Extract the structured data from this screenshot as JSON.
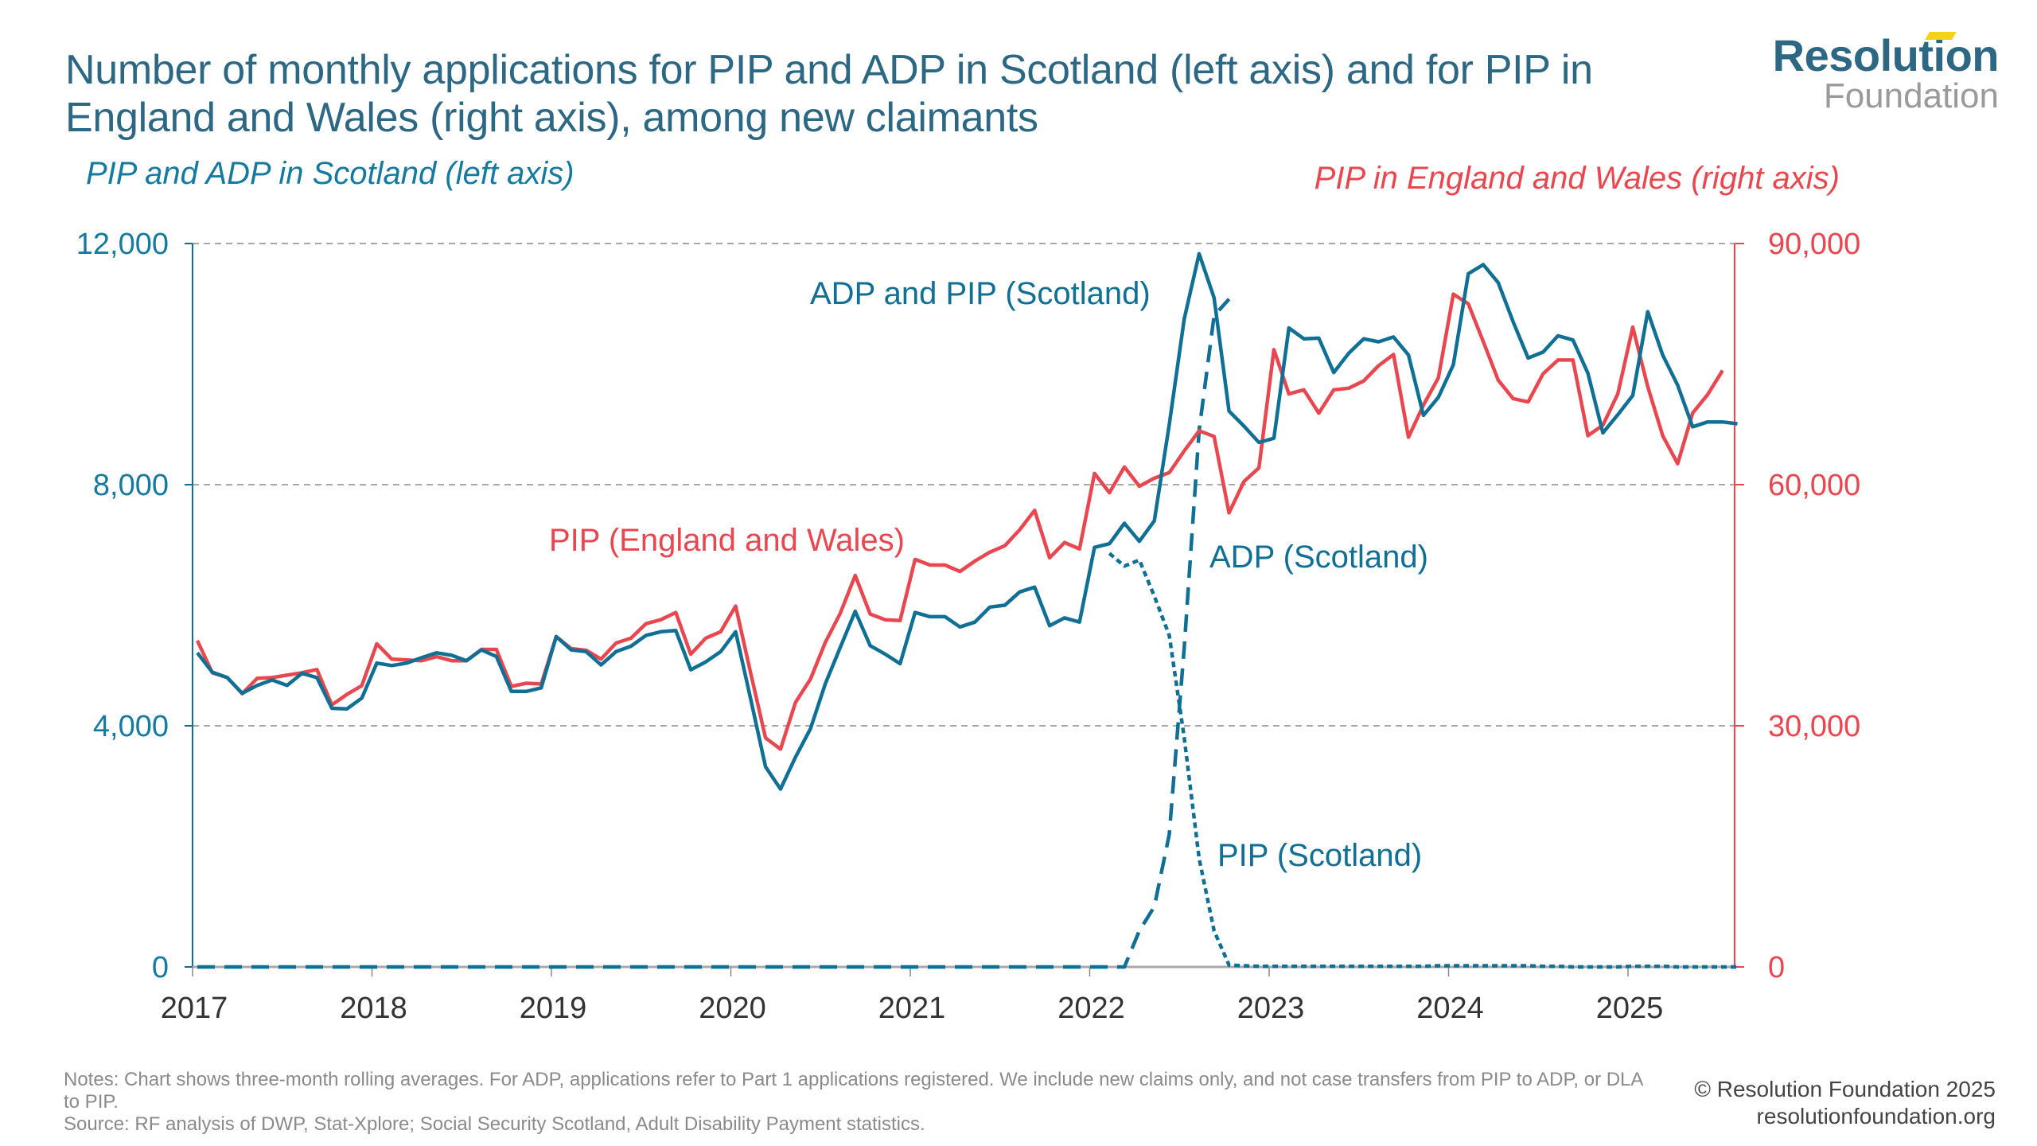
{
  "header": {
    "title": "Number of monthly applications for PIP and ADP in Scotland (left axis) and for PIP in England and Wales (right axis), among new claimants",
    "logo_top": "Resolution",
    "logo_bottom": "Foundation"
  },
  "colors": {
    "scotland": "#0f6f94",
    "england_wales": "#e9474f",
    "grid": "#a8a8a8",
    "title": "#2c6783"
  },
  "chart_data": {
    "type": "line",
    "title": "Number of monthly applications for PIP and ADP in Scotland (left axis) and for PIP in England and Wales (right axis), among new claimants",
    "ylabel": "PIP and ADP in Scotland (left axis)",
    "ylabel_right": "PIP in England and Wales (right axis)",
    "xlabel": "",
    "ylim": [
      0,
      12000
    ],
    "ylim_right": [
      0,
      90000
    ],
    "yticks": [
      "0",
      "4,000",
      "8,000",
      "12,000"
    ],
    "yticks_values": [
      0,
      4000,
      8000,
      12000
    ],
    "yticks_right": [
      "0",
      "30,000",
      "60,000",
      "90,000"
    ],
    "yticks_right_values": [
      0,
      30000,
      60000,
      90000
    ],
    "xticks": [
      "2017",
      "2018",
      "2019",
      "2020",
      "2021",
      "2022",
      "2023",
      "2024",
      "2025"
    ],
    "x_start": "2017-01",
    "x_frequency": "monthly",
    "grid": "horizontal dashed",
    "series": [
      {
        "name": "ADP and PIP (Scotland)",
        "axis": "left",
        "style": "solid",
        "start_index": 0,
        "values": [
          5210,
          4890,
          4800,
          4540,
          4670,
          4760,
          4670,
          4870,
          4800,
          4290,
          4280,
          4460,
          5040,
          5000,
          5040,
          5130,
          5210,
          5170,
          5080,
          5260,
          5150,
          4570,
          4570,
          4630,
          5480,
          5260,
          5230,
          5010,
          5230,
          5320,
          5500,
          5560,
          5580,
          4930,
          5060,
          5230,
          5560,
          4450,
          3320,
          2950,
          3480,
          3950,
          4700,
          5300,
          5900,
          5330,
          5190,
          5030,
          5880,
          5810,
          5810,
          5640,
          5720,
          5970,
          6000,
          6220,
          6300,
          5660,
          5790,
          5720,
          6960,
          7020,
          7360,
          7060,
          7400,
          9000,
          10750,
          11830,
          11100,
          9220,
          8970,
          8700,
          8770,
          10600,
          10420,
          10430,
          9860,
          10180,
          10420,
          10370,
          10450,
          10150,
          9150,
          9450,
          9990,
          11500,
          11650,
          11350,
          10700,
          10100,
          10200,
          10470,
          10400,
          9850,
          8860,
          9160,
          9480,
          10870,
          10150,
          9650,
          8960,
          9040,
          9040,
          9010
        ]
      },
      {
        "name": "PIP (England and Wales)",
        "axis": "right",
        "style": "solid",
        "start_index": 0,
        "values": [
          40600,
          36600,
          36000,
          34000,
          35900,
          36000,
          36300,
          36600,
          37000,
          32600,
          33900,
          35000,
          40200,
          38300,
          38200,
          38100,
          38600,
          38100,
          38100,
          39500,
          39500,
          34900,
          35300,
          35200,
          41100,
          39600,
          39400,
          38300,
          40300,
          40900,
          42700,
          43200,
          44100,
          38900,
          40900,
          41700,
          44900,
          36600,
          28500,
          27100,
          32900,
          35800,
          40400,
          44000,
          48700,
          43900,
          43200,
          43100,
          50700,
          50000,
          50000,
          49200,
          50500,
          51600,
          52400,
          54400,
          56800,
          50900,
          52800,
          52000,
          61400,
          59000,
          62200,
          59800,
          60800,
          61500,
          64200,
          66700,
          66000,
          56500,
          60400,
          62100,
          76800,
          71300,
          71800,
          68900,
          71800,
          72000,
          72900,
          74800,
          76200,
          65900,
          69900,
          73300,
          83700,
          82500,
          77800,
          73000,
          70700,
          70300,
          73800,
          75500,
          75500,
          66100,
          67400,
          71300,
          79600,
          72200,
          66100,
          62600,
          68900,
          71200,
          74200
        ]
      },
      {
        "name": "ADP (Scotland)",
        "axis": "left",
        "style": "dashed",
        "start_index": 0,
        "values": [
          0,
          0,
          0,
          0,
          0,
          0,
          0,
          0,
          0,
          0,
          0,
          0,
          0,
          0,
          0,
          0,
          0,
          0,
          0,
          0,
          0,
          0,
          0,
          0,
          0,
          0,
          0,
          0,
          0,
          0,
          0,
          0,
          0,
          0,
          0,
          0,
          0,
          0,
          0,
          0,
          0,
          0,
          0,
          0,
          0,
          0,
          0,
          0,
          0,
          0,
          0,
          0,
          0,
          0,
          0,
          0,
          0,
          0,
          0,
          0,
          0,
          0,
          0,
          600,
          1000,
          2200,
          5300,
          8900,
          10800,
          11080
        ]
      },
      {
        "name": "PIP (Scotland)",
        "axis": "left",
        "style": "dotted",
        "start_index": 61,
        "values": [
          6860,
          6650,
          6750,
          6150,
          5500,
          3800,
          1800,
          600,
          30,
          20,
          10,
          10,
          10,
          10,
          10,
          10,
          10,
          10,
          10,
          10,
          10,
          10,
          20,
          20,
          20,
          20,
          20,
          20,
          20,
          10,
          10,
          0,
          0,
          0,
          0,
          10,
          10,
          10,
          0,
          0,
          0,
          0,
          0
        ]
      }
    ],
    "annotations": [
      {
        "text": "ADP and PIP (Scotland)",
        "series": "ADP and PIP (Scotland)"
      },
      {
        "text": "PIP (England and Wales)",
        "series": "PIP (England and Wales)"
      },
      {
        "text": "ADP (Scotland)",
        "series": "ADP (Scotland)"
      },
      {
        "text": "PIP (Scotland)",
        "series": "PIP (Scotland)"
      }
    ]
  },
  "footer": {
    "notes": "Notes: Chart shows three-month rolling averages. For ADP, applications refer to Part 1 applications registered. We include new claims only, and not case transfers from PIP to ADP, or DLA to PIP.",
    "source": "Source: RF analysis of DWP, Stat-Xplore;  Social Security Scotland, Adult Disability Payment statistics.",
    "copyright": "© Resolution Foundation 2025",
    "website": "resolutionfoundation.org"
  }
}
